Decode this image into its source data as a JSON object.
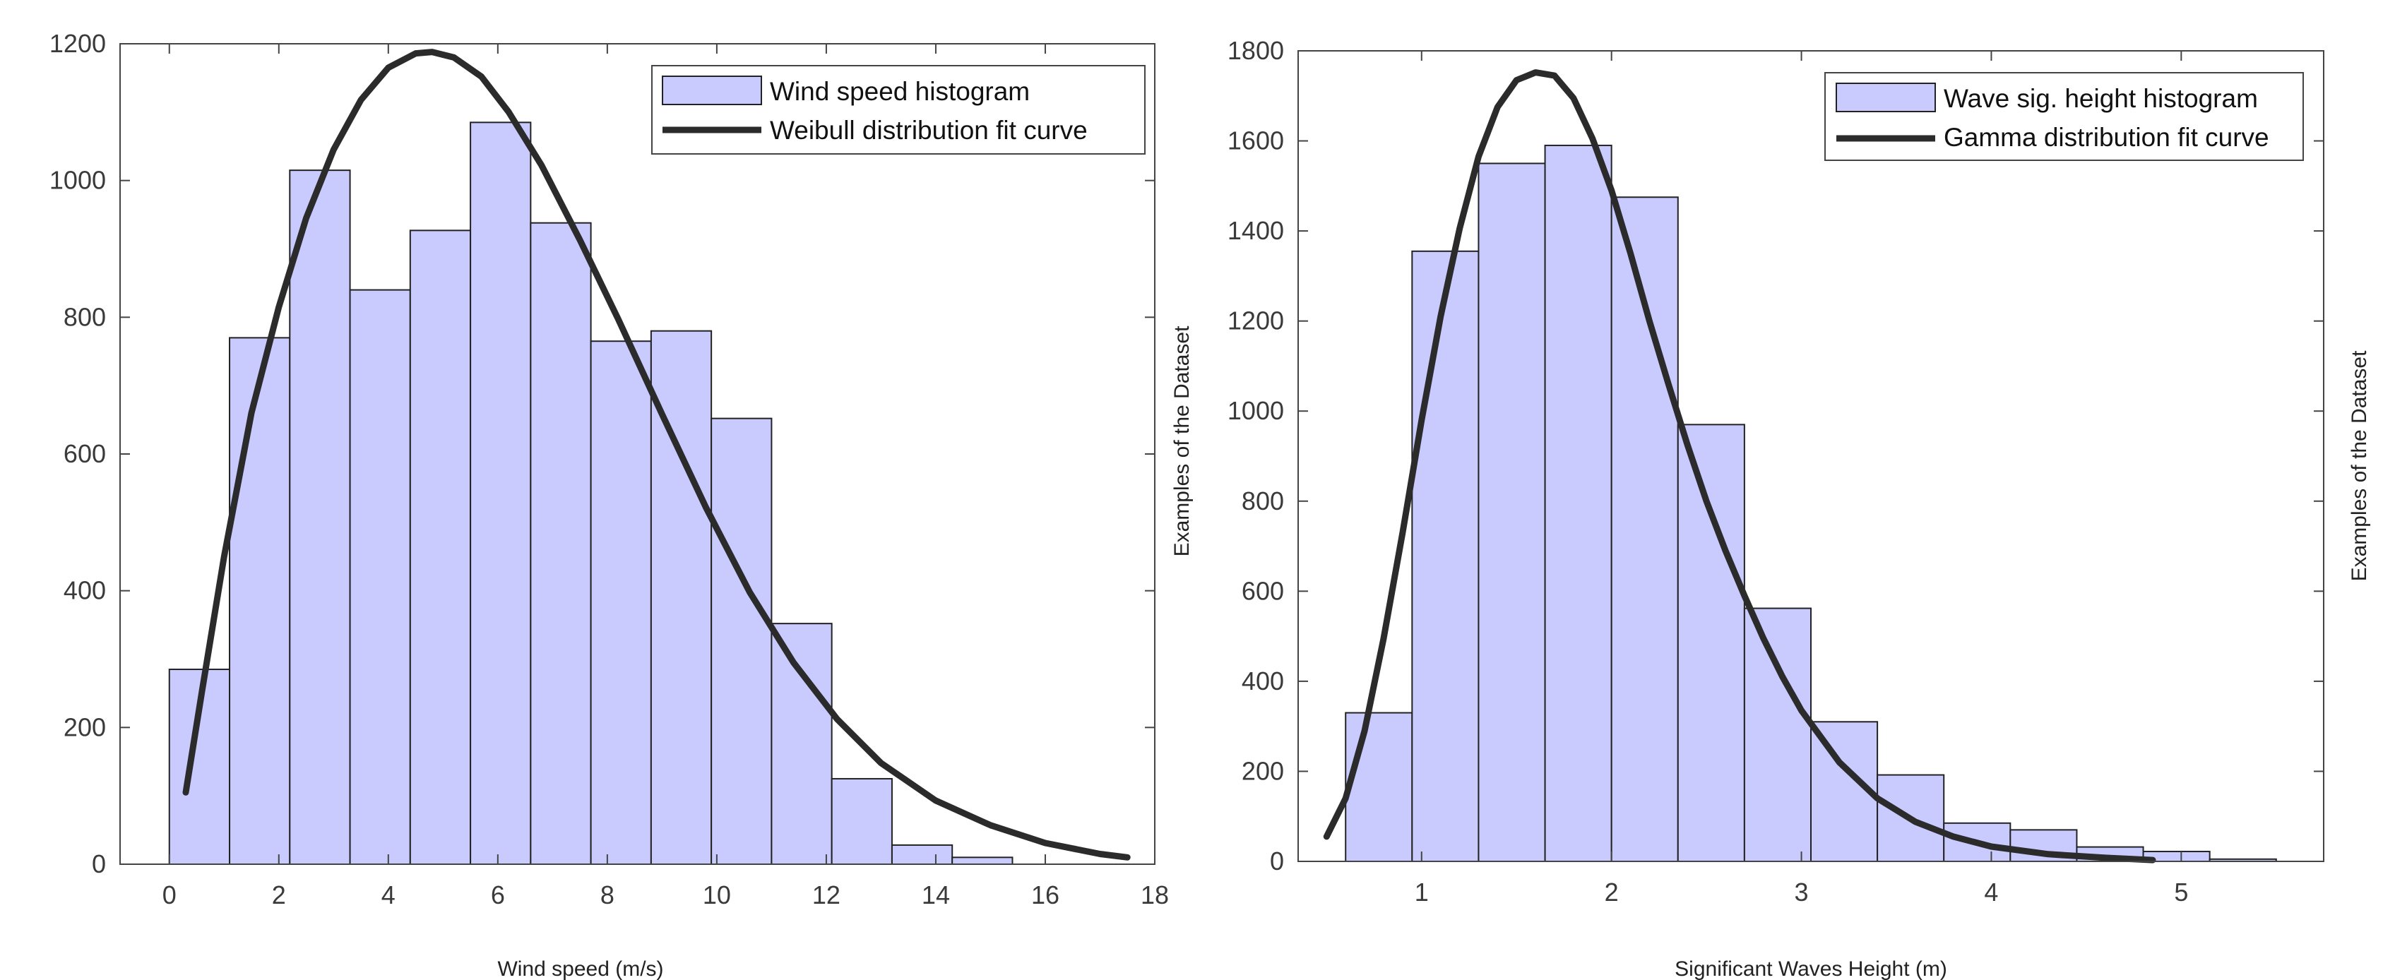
{
  "chart_data": [
    {
      "type": "bar",
      "title": "",
      "xlabel": "Wind speed (m/s)",
      "ylabel": "",
      "xlim": [
        -0.9,
        18
      ],
      "ylim": [
        0,
        1200
      ],
      "xticks": [
        0,
        2,
        4,
        6,
        8,
        10,
        12,
        14,
        16,
        18
      ],
      "yticks": [
        0,
        200,
        400,
        600,
        800,
        1000,
        1200
      ],
      "bin_edges": [
        0,
        1.1,
        2.2,
        3.3,
        4.4,
        5.5,
        6.6,
        7.7,
        8.8,
        9.9,
        11.0,
        12.1,
        13.2,
        14.3,
        15.4
      ],
      "values": [
        285,
        770,
        1015,
        840,
        927,
        1085,
        938,
        765,
        780,
        652,
        352,
        125,
        28,
        10
      ],
      "fit_curve": {
        "x": [
          0.3,
          0.6,
          1.0,
          1.5,
          2.0,
          2.5,
          3.0,
          3.5,
          4.0,
          4.5,
          4.8,
          5.2,
          5.7,
          6.2,
          6.8,
          7.5,
          8.2,
          9.0,
          9.8,
          10.6,
          11.4,
          12.2,
          13.0,
          14.0,
          15.0,
          16.0,
          17.0,
          17.5
        ],
        "y": [
          105,
          255,
          450,
          660,
          815,
          945,
          1045,
          1118,
          1165,
          1186,
          1188,
          1180,
          1152,
          1100,
          1022,
          913,
          797,
          658,
          522,
          398,
          295,
          212,
          148,
          93,
          57,
          31,
          15,
          10
        ]
      },
      "legend": [
        "Wind speed histogram",
        "Weibull distribution fit curve"
      ],
      "legend_position": "top-right",
      "series_colors": {
        "bars": "#c9cbff",
        "curve": "#2b2b2b"
      }
    },
    {
      "type": "bar",
      "title": "",
      "xlabel": "Significant Waves Height (m)",
      "ylabel": "Examples of the Dataset",
      "xlim": [
        0.35,
        5.75
      ],
      "ylim": [
        0,
        1800
      ],
      "xticks": [
        1,
        2,
        3,
        4,
        5
      ],
      "yticks": [
        0,
        200,
        400,
        600,
        800,
        1000,
        1200,
        1400,
        1600,
        1800
      ],
      "bin_edges": [
        0.6,
        0.95,
        1.3,
        1.65,
        2.0,
        2.35,
        2.7,
        3.05,
        3.4,
        3.75,
        4.1,
        4.45,
        4.8,
        5.15,
        5.5
      ],
      "values": [
        330,
        1355,
        1550,
        1590,
        1475,
        970,
        562,
        310,
        192,
        85,
        70,
        32,
        22,
        5
      ],
      "fit_curve": {
        "x": [
          0.5,
          0.6,
          0.7,
          0.8,
          0.9,
          1.0,
          1.1,
          1.2,
          1.3,
          1.4,
          1.5,
          1.6,
          1.7,
          1.8,
          1.9,
          2.0,
          2.1,
          2.2,
          2.3,
          2.4,
          2.5,
          2.6,
          2.7,
          2.8,
          2.9,
          3.0,
          3.2,
          3.4,
          3.6,
          3.8,
          4.0,
          4.3,
          4.6,
          4.85
        ],
        "y": [
          55,
          140,
          290,
          495,
          730,
          980,
          1210,
          1405,
          1565,
          1675,
          1735,
          1752,
          1745,
          1695,
          1605,
          1490,
          1350,
          1200,
          1060,
          925,
          800,
          690,
          590,
          495,
          410,
          335,
          220,
          140,
          88,
          55,
          33,
          16,
          8,
          3
        ]
      },
      "legend": [
        "Wave sig. height histogram",
        "Gamma distribution fit curve"
      ],
      "legend_position": "top-right",
      "series_colors": {
        "bars": "#c9cbff",
        "curve": "#2b2b2b"
      }
    }
  ],
  "side_labels": [
    "Examples of the Dataset",
    "Examples of the Dataset"
  ]
}
